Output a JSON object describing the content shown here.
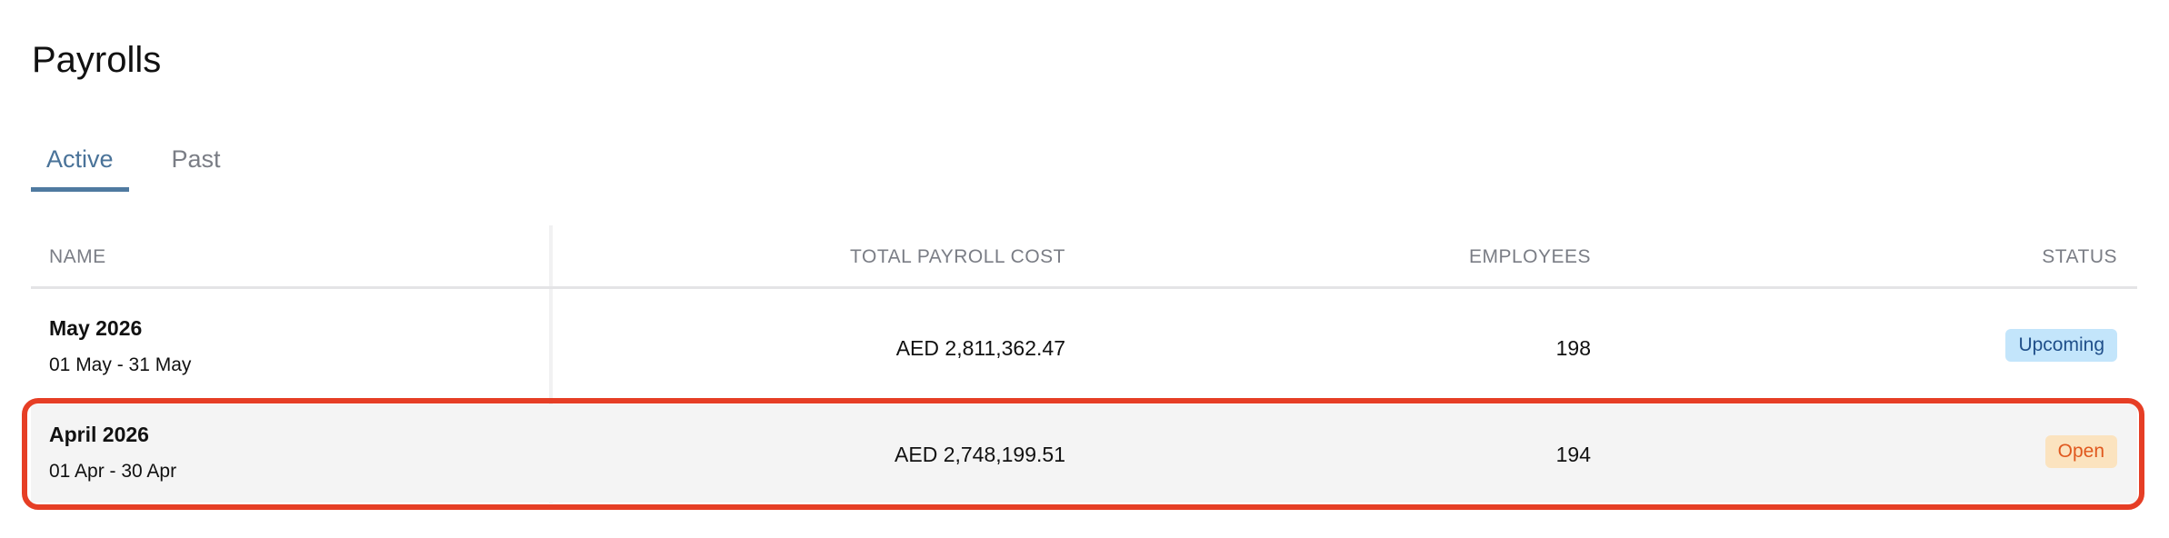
{
  "page": {
    "title": "Payrolls"
  },
  "tabs": [
    {
      "label": "Active",
      "active": true
    },
    {
      "label": "Past",
      "active": false
    }
  ],
  "table": {
    "columns": [
      "NAME",
      "TOTAL PAYROLL COST",
      "EMPLOYEES",
      "STATUS"
    ],
    "rows": [
      {
        "name": "May 2026",
        "period": "01 May - 31 May",
        "cost": "AED 2,811,362.47",
        "employees": "198",
        "status": "Upcoming",
        "status_color": "#c3e5fb"
      },
      {
        "name": "April 2026",
        "period": "01 Apr - 30 Apr",
        "cost": "AED 2,748,199.51",
        "employees": "194",
        "status": "Open",
        "status_color": "#fbe3bf",
        "highlighted": true
      }
    ]
  },
  "highlight_color": "#e63e25"
}
